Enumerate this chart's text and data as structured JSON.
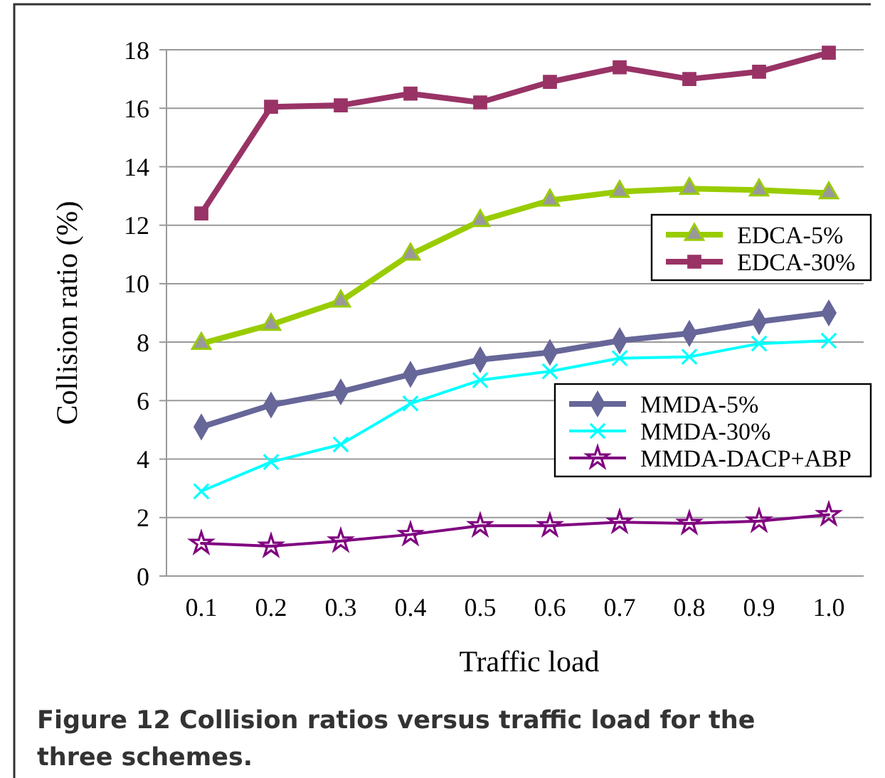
{
  "chart_data": {
    "type": "line",
    "title": "Figure 12 Collision ratios versus traffic load for the three schemes.",
    "xlabel": "Traffic load",
    "ylabel": "Collision ratio (%)",
    "categories": [
      "0.1",
      "0.2",
      "0.3",
      "0.4",
      "0.5",
      "0.6",
      "0.7",
      "0.8",
      "0.9",
      "1.0"
    ],
    "series": [
      {
        "name": "EDCA-5%",
        "color": "#99cc00",
        "marker": "triangle",
        "values": [
          7.95,
          8.6,
          9.4,
          11.0,
          12.15,
          12.85,
          13.15,
          13.25,
          13.2,
          13.1
        ]
      },
      {
        "name": "EDCA-30%",
        "color": "#993366",
        "marker": "square",
        "values": [
          12.4,
          16.05,
          16.1,
          16.5,
          16.2,
          16.9,
          17.4,
          17.0,
          17.25,
          17.9
        ]
      },
      {
        "name": "MMDA-5%",
        "color": "#666699",
        "marker": "diamond",
        "values": [
          5.1,
          5.85,
          6.3,
          6.9,
          7.4,
          7.65,
          8.05,
          8.3,
          8.7,
          9.0
        ]
      },
      {
        "name": "MMDA-30%",
        "color": "#00ffff",
        "marker": "cross",
        "values": [
          2.9,
          3.9,
          4.5,
          5.9,
          6.7,
          7.0,
          7.45,
          7.5,
          7.95,
          8.05
        ]
      },
      {
        "name": "MMDA-DACP+ABP",
        "color": "#800080",
        "marker": "star",
        "values": [
          1.12,
          1.02,
          1.2,
          1.42,
          1.72,
          1.72,
          1.84,
          1.8,
          1.88,
          2.1
        ]
      }
    ],
    "ylim": [
      0,
      18
    ],
    "yticks": [
      0,
      2,
      4,
      6,
      8,
      10,
      12,
      14,
      16,
      18
    ],
    "grid": "y",
    "legend": "right"
  }
}
